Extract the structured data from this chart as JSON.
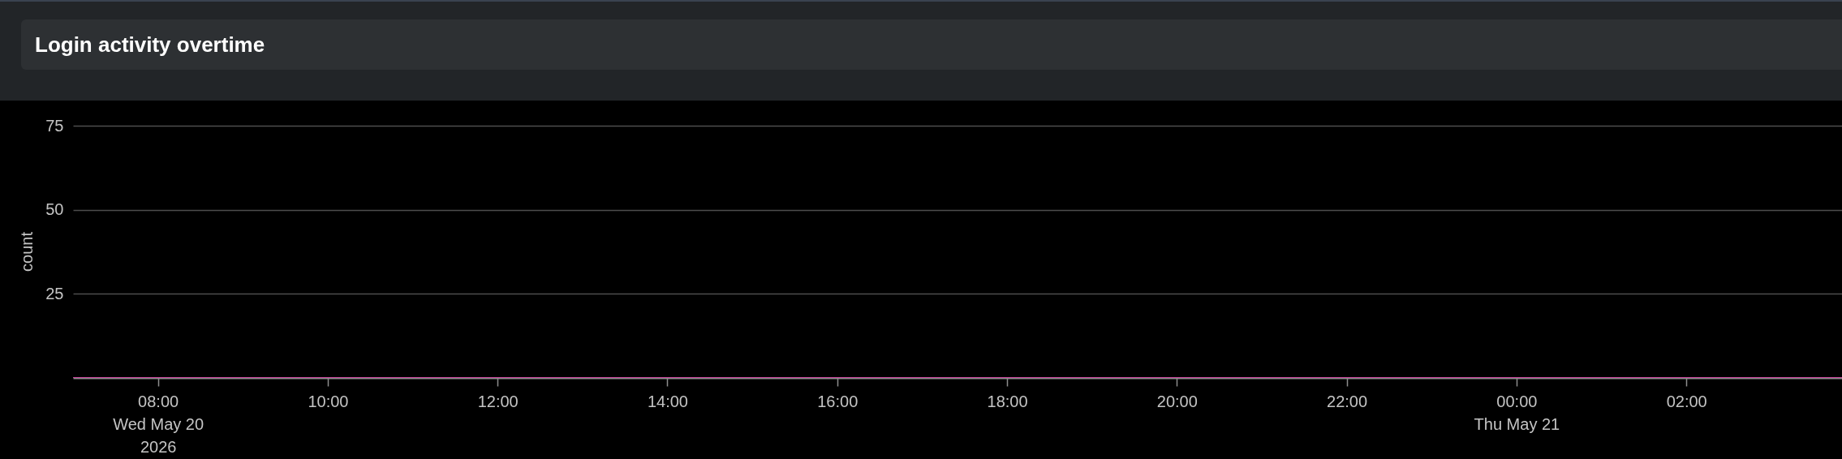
{
  "chart_data": {
    "type": "line",
    "title": "Login activity overtime",
    "ylabel": "count",
    "x": [
      "2026-05-20T07:00",
      "2026-05-20T08:00",
      "2026-05-20T09:00",
      "2026-05-20T10:00",
      "2026-05-20T11:00",
      "2026-05-20T12:00",
      "2026-05-20T13:00",
      "2026-05-20T14:00",
      "2026-05-20T15:00",
      "2026-05-20T16:00",
      "2026-05-20T17:00",
      "2026-05-20T18:00",
      "2026-05-20T19:00",
      "2026-05-20T20:00",
      "2026-05-20T21:00",
      "2026-05-20T22:00",
      "2026-05-20T23:00",
      "2026-05-21T00:00",
      "2026-05-21T01:00",
      "2026-05-21T02:00",
      "2026-05-21T03:00",
      "2026-05-21T03:50"
    ],
    "values": [
      0,
      0,
      0,
      0,
      0,
      0,
      0,
      0,
      0,
      0,
      0,
      0,
      0,
      0,
      0,
      0,
      0,
      0,
      0,
      0,
      0,
      0
    ],
    "color": "#c8409a",
    "xlim": [
      "2026-05-20T07:00",
      "2026-05-21T03:50"
    ],
    "ylim": [
      0,
      75
    ],
    "xticks": [
      {
        "value": "2026-05-20T08:00",
        "label": "08:00\nWed May 20\n2026"
      },
      {
        "value": "2026-05-20T10:00",
        "label": "10:00"
      },
      {
        "value": "2026-05-20T12:00",
        "label": "12:00"
      },
      {
        "value": "2026-05-20T14:00",
        "label": "14:00"
      },
      {
        "value": "2026-05-20T16:00",
        "label": "16:00"
      },
      {
        "value": "2026-05-20T18:00",
        "label": "18:00"
      },
      {
        "value": "2026-05-20T20:00",
        "label": "20:00"
      },
      {
        "value": "2026-05-20T22:00",
        "label": "22:00"
      },
      {
        "value": "2026-05-21T00:00",
        "label": "00:00\nThu May 21"
      },
      {
        "value": "2026-05-21T02:00",
        "label": "02:00"
      }
    ],
    "yticks": [
      25,
      50,
      75
    ],
    "grid": "y"
  }
}
